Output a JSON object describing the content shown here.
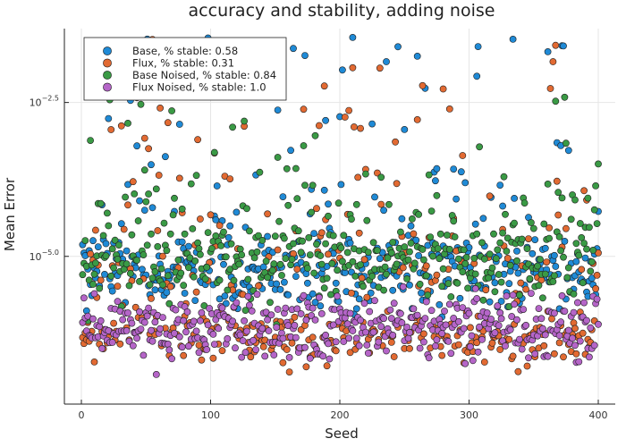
{
  "chart_data": {
    "type": "scatter",
    "title": "accuracy and stability, adding noise",
    "xlabel": "Seed",
    "ylabel": "Mean Error",
    "xlim": [
      0,
      400
    ],
    "ylim_log10": [
      -7.4,
      -1.3
    ],
    "y_scale": "log",
    "x_ticks": [
      {
        "value": 0,
        "label": "0"
      },
      {
        "value": 100,
        "label": "100"
      },
      {
        "value": 200,
        "label": "200"
      },
      {
        "value": 300,
        "label": "300"
      },
      {
        "value": 400,
        "label": "400"
      }
    ],
    "y_ticks": [
      {
        "log10": -2.5,
        "base": "10",
        "exp": "−2.5"
      },
      {
        "log10": -5.0,
        "base": "10",
        "exp": "−5.0"
      }
    ],
    "grid": true,
    "legend_position": "top-left",
    "series": [
      {
        "name": "Base, % stable: 0.58",
        "color": "#1f8ad6",
        "n": 400,
        "pattern": "base"
      },
      {
        "name": "Flux, % stable: 0.31",
        "color": "#e26a32",
        "n": 400,
        "pattern": "flux"
      },
      {
        "name": "Base Noised, % stable: 0.84",
        "color": "#3a9a45",
        "n": 400,
        "pattern": "base_noised"
      },
      {
        "name": "Flux Noised, % stable: 1.0",
        "color": "#b565c8",
        "n": 400,
        "pattern": "flux_noised"
      }
    ],
    "note_values": "points are approximate; y values given as log10 of Mean Error"
  }
}
